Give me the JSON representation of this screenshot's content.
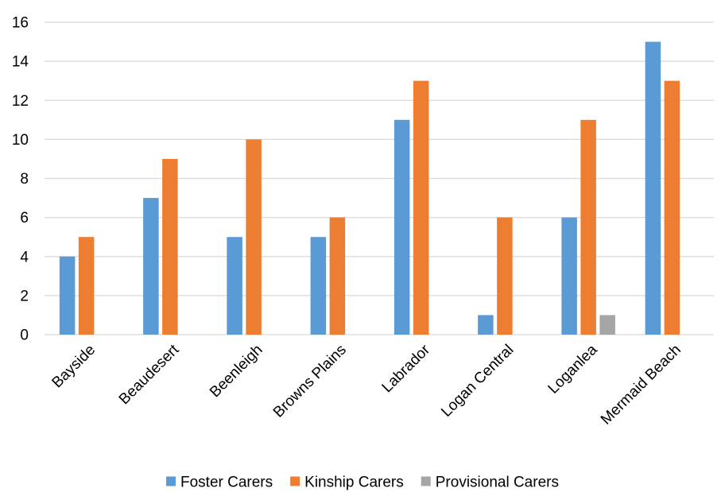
{
  "chart_data": {
    "type": "bar",
    "categories": [
      "Bayside",
      "Beaudesert",
      "Beenleigh",
      "Browns Plains",
      "Labrador",
      "Logan Central",
      "Loganlea",
      "Mermaid Beach"
    ],
    "series": [
      {
        "name": "Foster Carers",
        "color": "#5B9BD5",
        "values": [
          4,
          7,
          5,
          5,
          11,
          1,
          6,
          15
        ]
      },
      {
        "name": "Kinship Carers",
        "color": "#ED7D31",
        "values": [
          5,
          9,
          10,
          6,
          13,
          6,
          11,
          13
        ]
      },
      {
        "name": "Provisional Carers",
        "color": "#A5A5A5",
        "values": [
          0,
          0,
          0,
          0,
          0,
          0,
          1,
          0
        ]
      }
    ],
    "ylim": [
      0,
      16
    ],
    "yticks": [
      0,
      2,
      4,
      6,
      8,
      10,
      12,
      14,
      16
    ],
    "grid": true,
    "legend_position": "bottom",
    "gridline_color": "#D9D9D9"
  }
}
